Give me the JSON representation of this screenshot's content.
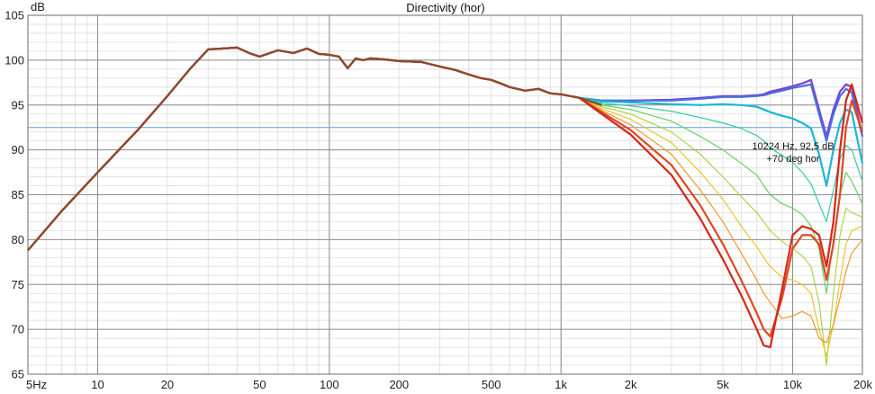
{
  "chart_data": {
    "type": "line",
    "title": "Directivity (hor)",
    "ylabel": "dB",
    "xscale": "log",
    "xlim": [
      5,
      20000
    ],
    "ylim": [
      65,
      105
    ],
    "x_ticks": [
      {
        "value": 5,
        "label": "5Hz"
      },
      {
        "value": 10,
        "label": "10"
      },
      {
        "value": 20,
        "label": "20"
      },
      {
        "value": 50,
        "label": "50"
      },
      {
        "value": 100,
        "label": "100"
      },
      {
        "value": 200,
        "label": "200"
      },
      {
        "value": 500,
        "label": "500"
      },
      {
        "value": 1000,
        "label": "1k"
      },
      {
        "value": 2000,
        "label": "2k"
      },
      {
        "value": 5000,
        "label": "5k"
      },
      {
        "value": 10000,
        "label": "10k"
      },
      {
        "value": 20000,
        "label": "20k"
      }
    ],
    "y_ticks": [
      {
        "value": 105,
        "label": "105"
      },
      {
        "value": 100,
        "label": "100"
      },
      {
        "value": 95,
        "label": "95"
      },
      {
        "value": 90,
        "label": "90"
      },
      {
        "value": 85,
        "label": "85"
      },
      {
        "value": 80,
        "label": "80"
      },
      {
        "value": 75,
        "label": "75"
      },
      {
        "value": 70,
        "label": "70"
      },
      {
        "value": 65,
        "label": "65"
      }
    ],
    "grid": true,
    "base_response": {
      "x": [
        5,
        7,
        10,
        15,
        20,
        25,
        30,
        35,
        40,
        45,
        50,
        60,
        70,
        80,
        90,
        100,
        110,
        120,
        130,
        140,
        150,
        170,
        200,
        250,
        300,
        350,
        400,
        450,
        500,
        550,
        600,
        700,
        800,
        900,
        1000,
        1200,
        1500
      ],
      "y": [
        78.8,
        83.2,
        87.5,
        92.3,
        96.0,
        99.0,
        101.2,
        101.3,
        101.4,
        100.8,
        100.4,
        101.1,
        100.8,
        101.3,
        100.7,
        100.6,
        100.4,
        99.1,
        100.2,
        100.0,
        100.2,
        100.1,
        99.9,
        99.8,
        99.3,
        98.9,
        98.4,
        98.0,
        97.8,
        97.4,
        97.0,
        96.6,
        96.8,
        96.3,
        96.2,
        95.8,
        95.0
      ]
    },
    "hf_x": [
      1500,
      2000,
      3000,
      4000,
      5000,
      6000,
      7000,
      7500,
      8000,
      9000,
      10000,
      11000,
      12000,
      13000,
      14000,
      15000,
      16000,
      17000,
      18000,
      20000
    ],
    "series": [
      {
        "color": "#7a3fd6",
        "y": [
          95.5,
          95.5,
          95.6,
          95.8,
          96.0,
          96.0,
          96.1,
          96.2,
          96.5,
          96.8,
          97.1,
          97.4,
          97.8,
          94.5,
          91.5,
          94.5,
          96.5,
          97.3,
          97.0,
          91.5
        ]
      },
      {
        "color": "#4a6fe0",
        "y": [
          95.5,
          95.5,
          95.5,
          95.7,
          95.9,
          95.9,
          96.0,
          96.1,
          96.3,
          96.6,
          96.9,
          97.1,
          97.3,
          94.0,
          91.0,
          94.0,
          96.0,
          96.8,
          96.4,
          91.5
        ]
      },
      {
        "color": "#19b7d6",
        "y": [
          95.4,
          95.3,
          95.1,
          95.0,
          95.1,
          95.0,
          94.8,
          94.5,
          94.2,
          93.8,
          93.5,
          93.0,
          92.4,
          89.5,
          86.0,
          90.0,
          93.0,
          94.5,
          94.2,
          88.5
        ]
      },
      {
        "color": "#22c9a0",
        "y": [
          95.2,
          94.9,
          94.3,
          93.6,
          93.0,
          92.4,
          91.6,
          91.0,
          90.2,
          89.4,
          88.6,
          87.5,
          86.2,
          84.0,
          82.0,
          85.5,
          89.0,
          90.5,
          90.0,
          86.5
        ]
      },
      {
        "color": "#5ccf58",
        "y": [
          95.0,
          94.5,
          93.2,
          91.5,
          90.0,
          88.5,
          87.2,
          86.0,
          85.0,
          84.0,
          83.5,
          82.8,
          81.5,
          79.0,
          74.0,
          80.0,
          85.0,
          87.5,
          86.5,
          84.0
        ]
      },
      {
        "color": "#a6d23a",
        "y": [
          94.8,
          94.0,
          92.0,
          89.5,
          87.0,
          84.8,
          83.0,
          82.0,
          81.0,
          79.8,
          79.0,
          78.2,
          77.0,
          73.0,
          66.0,
          74.0,
          80.5,
          83.5,
          83.0,
          82.5
        ]
      },
      {
        "color": "#e8c21e",
        "y": [
          94.6,
          93.4,
          90.8,
          87.5,
          84.5,
          81.5,
          79.2,
          78.0,
          77.0,
          75.8,
          75.5,
          75.0,
          74.0,
          70.0,
          67.0,
          70.5,
          75.5,
          79.5,
          81.0,
          81.5
        ]
      },
      {
        "color": "#f2911b",
        "y": [
          94.4,
          92.8,
          89.5,
          85.5,
          82.0,
          78.5,
          75.5,
          74.0,
          73.0,
          71.2,
          71.5,
          72.0,
          71.5,
          69.0,
          68.5,
          70.5,
          73.5,
          76.5,
          78.5,
          80.0
        ]
      },
      {
        "color": "#e2461f",
        "y": [
          94.2,
          92.2,
          88.3,
          83.8,
          79.5,
          75.5,
          71.8,
          70.0,
          69.2,
          73.5,
          79.0,
          80.5,
          80.5,
          79.5,
          75.5,
          79.5,
          85.0,
          92.5,
          95.5,
          92.0
        ]
      },
      {
        "color": "#d42618",
        "y": [
          94.0,
          91.7,
          87.2,
          82.3,
          77.8,
          73.8,
          70.0,
          68.2,
          68.0,
          74.5,
          80.5,
          81.5,
          81.2,
          80.5,
          77.0,
          82.0,
          90.0,
          95.5,
          97.3,
          93.0
        ]
      }
    ],
    "cursor": {
      "y": 92.5,
      "label_line1": "10224 Hz, 92,5 dB",
      "label_line2": "+70 deg hor"
    },
    "colors": {
      "background": "#ffffff",
      "major_grid": "#8c8c8c",
      "minor_grid": "#e2e2e2",
      "cursor_line": "#5c9be0",
      "base_curve": "#8c4a2a"
    }
  }
}
